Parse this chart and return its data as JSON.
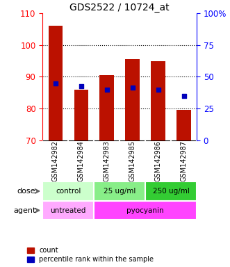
{
  "title": "GDS2522 / 10724_at",
  "categories": [
    "GSM142982",
    "GSM142984",
    "GSM142983",
    "GSM142985",
    "GSM142986",
    "GSM142987"
  ],
  "bar_tops": [
    106,
    86,
    90.5,
    95.5,
    95,
    79.5
  ],
  "bar_bottom": 70,
  "percentile_left_axis": [
    88,
    87,
    86,
    86.5,
    86,
    84
  ],
  "ylim_left": [
    70,
    110
  ],
  "ylim_right": [
    0,
    100
  ],
  "yticks_left": [
    70,
    80,
    90,
    100,
    110
  ],
  "yticks_right": [
    0,
    25,
    50,
    75,
    100
  ],
  "yticklabels_right": [
    "0",
    "25",
    "50",
    "75",
    "100%"
  ],
  "bar_color": "#bb1100",
  "dot_color": "#0000bb",
  "dose_groups": [
    {
      "label": "control",
      "span": [
        0,
        2
      ],
      "color": "#ccffcc"
    },
    {
      "label": "25 ug/ml",
      "span": [
        2,
        4
      ],
      "color": "#88ee88"
    },
    {
      "label": "250 ug/ml",
      "span": [
        4,
        6
      ],
      "color": "#33cc33"
    }
  ],
  "agent_groups": [
    {
      "label": "untreated",
      "span": [
        0,
        2
      ],
      "color": "#ffaaff"
    },
    {
      "label": "pyocyanin",
      "span": [
        2,
        6
      ],
      "color": "#ff44ff"
    }
  ],
  "dose_label": "dose",
  "agent_label": "agent",
  "tick_area_color": "#bbbbbb",
  "background_color": "#ffffff"
}
